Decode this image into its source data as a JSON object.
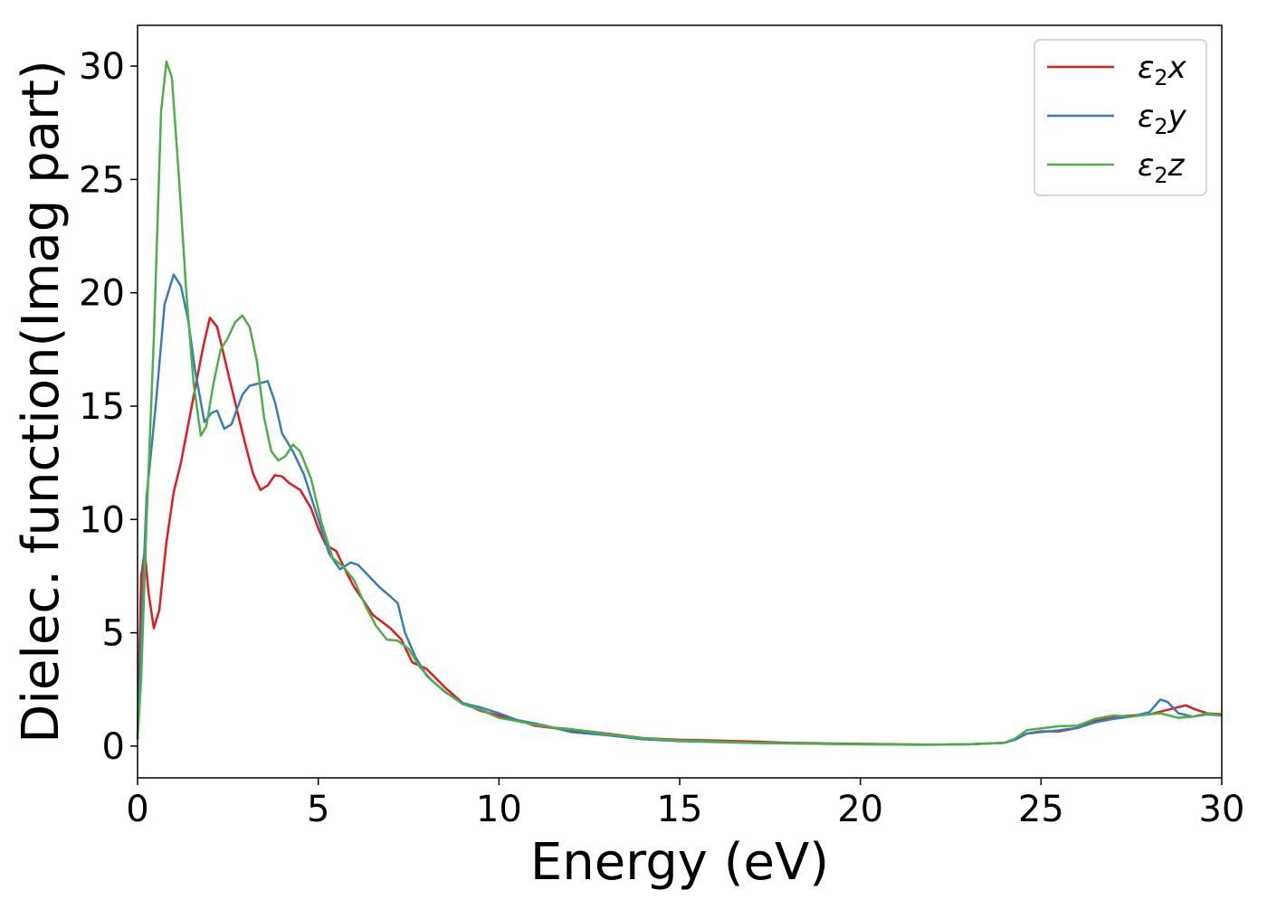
{
  "chart_data": {
    "type": "line",
    "title": "",
    "xlabel": "Energy (eV)",
    "ylabel": "Dielec. function(Imag part)",
    "xlim": [
      0,
      30
    ],
    "ylim": [
      -1.4,
      31.8
    ],
    "xticks": [
      "0",
      "5",
      "10",
      "15",
      "20",
      "25",
      "30"
    ],
    "yticks": [
      "0",
      "5",
      "10",
      "15",
      "20",
      "25",
      "30"
    ],
    "grid": false,
    "legend_position": "top-right",
    "series": [
      {
        "name": "ε₂x",
        "legend_base": "ε",
        "legend_sub": "2",
        "legend_var": "x",
        "color": "#e41a1c",
        "points": [
          [
            0,
            0.3
          ],
          [
            0.1,
            7.5
          ],
          [
            0.2,
            8.6
          ],
          [
            0.3,
            6.8
          ],
          [
            0.45,
            5.2
          ],
          [
            0.6,
            6.0
          ],
          [
            0.8,
            9.0
          ],
          [
            1.0,
            11.2
          ],
          [
            1.2,
            12.5
          ],
          [
            1.5,
            15.0
          ],
          [
            1.8,
            17.5
          ],
          [
            2.0,
            18.9
          ],
          [
            2.2,
            18.5
          ],
          [
            2.5,
            16.5
          ],
          [
            2.8,
            14.5
          ],
          [
            3.0,
            13.2
          ],
          [
            3.2,
            12.0
          ],
          [
            3.4,
            11.3
          ],
          [
            3.6,
            11.5
          ],
          [
            3.8,
            11.95
          ],
          [
            4.0,
            11.9
          ],
          [
            4.2,
            11.6
          ],
          [
            4.5,
            11.3
          ],
          [
            4.8,
            10.5
          ],
          [
            5.0,
            9.6
          ],
          [
            5.2,
            8.9
          ],
          [
            5.5,
            8.6
          ],
          [
            5.8,
            7.6
          ],
          [
            6.0,
            7.0
          ],
          [
            6.3,
            6.3
          ],
          [
            6.5,
            5.8
          ],
          [
            7.0,
            5.2
          ],
          [
            7.3,
            4.7
          ],
          [
            7.6,
            3.7
          ],
          [
            8.0,
            3.4
          ],
          [
            8.5,
            2.6
          ],
          [
            9.0,
            1.9
          ],
          [
            9.5,
            1.55
          ],
          [
            10,
            1.35
          ],
          [
            10.5,
            1.15
          ],
          [
            11,
            0.9
          ],
          [
            11.5,
            0.8
          ],
          [
            12,
            0.7
          ],
          [
            12.5,
            0.65
          ],
          [
            13,
            0.55
          ],
          [
            14,
            0.35
          ],
          [
            15,
            0.28
          ],
          [
            16,
            0.25
          ],
          [
            17,
            0.2
          ],
          [
            18,
            0.15
          ],
          [
            19,
            0.12
          ],
          [
            20,
            0.1
          ],
          [
            21,
            0.08
          ],
          [
            22,
            0.07
          ],
          [
            23,
            0.08
          ],
          [
            24,
            0.15
          ],
          [
            24.3,
            0.3
          ],
          [
            24.6,
            0.55
          ],
          [
            25,
            0.65
          ],
          [
            25.5,
            0.65
          ],
          [
            26,
            0.8
          ],
          [
            26.5,
            1.1
          ],
          [
            27,
            1.3
          ],
          [
            27.5,
            1.35
          ],
          [
            28,
            1.4
          ],
          [
            28.5,
            1.6
          ],
          [
            29,
            1.8
          ],
          [
            29.3,
            1.6
          ],
          [
            29.6,
            1.45
          ],
          [
            30,
            1.4
          ]
        ]
      },
      {
        "name": "ε₂y",
        "legend_base": "ε",
        "legend_sub": "2",
        "legend_var": "y",
        "color": "#377eb8",
        "points": [
          [
            0,
            0.3
          ],
          [
            0.1,
            5.0
          ],
          [
            0.25,
            11.0
          ],
          [
            0.5,
            15.0
          ],
          [
            0.75,
            19.5
          ],
          [
            1.0,
            20.8
          ],
          [
            1.2,
            20.3
          ],
          [
            1.4,
            18.8
          ],
          [
            1.6,
            16.5
          ],
          [
            1.85,
            14.3
          ],
          [
            2.05,
            14.7
          ],
          [
            2.2,
            14.8
          ],
          [
            2.4,
            14.0
          ],
          [
            2.6,
            14.2
          ],
          [
            2.9,
            15.5
          ],
          [
            3.1,
            15.9
          ],
          [
            3.35,
            16.0
          ],
          [
            3.6,
            16.1
          ],
          [
            3.8,
            15.2
          ],
          [
            4.0,
            13.8
          ],
          [
            4.3,
            13.0
          ],
          [
            4.6,
            12.0
          ],
          [
            5.0,
            10.0
          ],
          [
            5.3,
            8.5
          ],
          [
            5.6,
            7.8
          ],
          [
            5.9,
            8.1
          ],
          [
            6.1,
            8.0
          ],
          [
            6.4,
            7.5
          ],
          [
            6.7,
            7.0
          ],
          [
            7.0,
            6.6
          ],
          [
            7.2,
            6.3
          ],
          [
            7.4,
            5.0
          ],
          [
            7.7,
            3.9
          ],
          [
            8.0,
            3.1
          ],
          [
            8.5,
            2.4
          ],
          [
            9.0,
            1.9
          ],
          [
            9.5,
            1.7
          ],
          [
            10,
            1.45
          ],
          [
            10.5,
            1.15
          ],
          [
            11,
            1.0
          ],
          [
            11.5,
            0.82
          ],
          [
            12,
            0.62
          ],
          [
            12.5,
            0.55
          ],
          [
            13,
            0.48
          ],
          [
            14,
            0.3
          ],
          [
            15,
            0.22
          ],
          [
            16,
            0.18
          ],
          [
            17,
            0.14
          ],
          [
            18,
            0.12
          ],
          [
            19,
            0.1
          ],
          [
            20,
            0.08
          ],
          [
            21,
            0.07
          ],
          [
            22,
            0.06
          ],
          [
            23,
            0.08
          ],
          [
            24,
            0.15
          ],
          [
            24.3,
            0.3
          ],
          [
            24.6,
            0.55
          ],
          [
            25,
            0.62
          ],
          [
            25.5,
            0.7
          ],
          [
            26,
            0.8
          ],
          [
            26.5,
            1.05
          ],
          [
            27,
            1.2
          ],
          [
            27.5,
            1.3
          ],
          [
            28,
            1.5
          ],
          [
            28.3,
            2.05
          ],
          [
            28.5,
            1.95
          ],
          [
            28.8,
            1.45
          ],
          [
            29.2,
            1.3
          ],
          [
            29.6,
            1.4
          ],
          [
            30,
            1.35
          ]
        ]
      },
      {
        "name": "ε₂z",
        "legend_base": "ε",
        "legend_sub": "2",
        "legend_var": "z",
        "color": "#4daf4a",
        "points": [
          [
            0,
            0.3
          ],
          [
            0.1,
            3.0
          ],
          [
            0.25,
            10.0
          ],
          [
            0.45,
            18.0
          ],
          [
            0.65,
            28.0
          ],
          [
            0.8,
            30.2
          ],
          [
            0.95,
            29.5
          ],
          [
            1.15,
            25.0
          ],
          [
            1.35,
            20.0
          ],
          [
            1.55,
            16.0
          ],
          [
            1.75,
            13.7
          ],
          [
            1.9,
            14.1
          ],
          [
            2.1,
            16.0
          ],
          [
            2.3,
            17.5
          ],
          [
            2.5,
            18.0
          ],
          [
            2.7,
            18.7
          ],
          [
            2.9,
            19.0
          ],
          [
            3.1,
            18.5
          ],
          [
            3.3,
            17.0
          ],
          [
            3.5,
            14.5
          ],
          [
            3.7,
            13.0
          ],
          [
            3.9,
            12.6
          ],
          [
            4.1,
            12.8
          ],
          [
            4.3,
            13.3
          ],
          [
            4.5,
            13.0
          ],
          [
            4.8,
            11.8
          ],
          [
            5.1,
            9.8
          ],
          [
            5.4,
            8.3
          ],
          [
            5.7,
            7.9
          ],
          [
            6.0,
            7.3
          ],
          [
            6.3,
            6.2
          ],
          [
            6.6,
            5.3
          ],
          [
            6.9,
            4.7
          ],
          [
            7.2,
            4.65
          ],
          [
            7.5,
            4.3
          ],
          [
            7.8,
            3.5
          ],
          [
            8.2,
            2.8
          ],
          [
            8.6,
            2.3
          ],
          [
            9.0,
            1.85
          ],
          [
            9.5,
            1.6
          ],
          [
            10,
            1.25
          ],
          [
            10.5,
            1.1
          ],
          [
            11,
            0.95
          ],
          [
            11.5,
            0.82
          ],
          [
            12,
            0.75
          ],
          [
            12.5,
            0.65
          ],
          [
            13,
            0.52
          ],
          [
            14,
            0.35
          ],
          [
            15,
            0.25
          ],
          [
            16,
            0.2
          ],
          [
            17,
            0.15
          ],
          [
            18,
            0.12
          ],
          [
            19,
            0.1
          ],
          [
            20,
            0.08
          ],
          [
            21,
            0.07
          ],
          [
            22,
            0.06
          ],
          [
            23,
            0.08
          ],
          [
            24,
            0.15
          ],
          [
            24.3,
            0.35
          ],
          [
            24.6,
            0.7
          ],
          [
            25,
            0.78
          ],
          [
            25.5,
            0.88
          ],
          [
            26,
            0.9
          ],
          [
            26.5,
            1.2
          ],
          [
            27,
            1.35
          ],
          [
            27.5,
            1.3
          ],
          [
            28,
            1.4
          ],
          [
            28.3,
            1.45
          ],
          [
            28.8,
            1.25
          ],
          [
            29.2,
            1.3
          ],
          [
            29.6,
            1.45
          ],
          [
            30,
            1.35
          ]
        ]
      }
    ]
  }
}
